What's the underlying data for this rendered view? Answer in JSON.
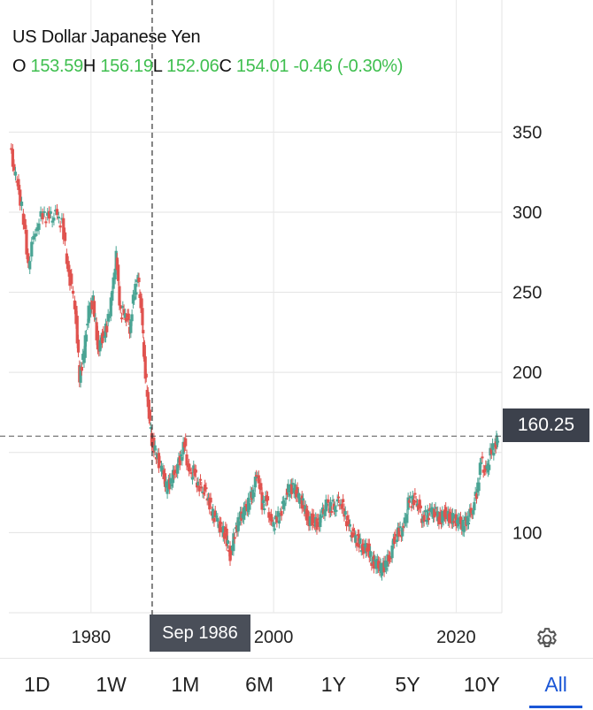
{
  "header": {
    "title": "US Dollar Japanese Yen",
    "ohlc": {
      "o_label": "O",
      "o": "153.59",
      "h_label": "H",
      "h": "156.19",
      "l_label": "L",
      "l": "152.06",
      "c_label": "C",
      "c": "154.01",
      "change": "-0.46",
      "change_pct": "(-0.30%)"
    }
  },
  "last_price_label": "160.25",
  "crosshair_label": "Sep 1986",
  "timeframes": [
    "1D",
    "1W",
    "1M",
    "6M",
    "1Y",
    "5Y",
    "10Y",
    "All"
  ],
  "active_timeframe": "All",
  "colors": {
    "up": "#4aa494",
    "down": "#e0534f",
    "value_text": "#3fbf4f",
    "active_tab": "#1a56d6"
  },
  "chart_data": {
    "type": "candlestick",
    "x_range": [
      1971,
      2025
    ],
    "y_range": [
      50,
      380
    ],
    "y_ticks": [
      100,
      150,
      200,
      250,
      300,
      350
    ],
    "y_tick_labels": [
      "100",
      "",
      "200",
      "250",
      "300",
      "350"
    ],
    "x_ticks": [
      1980,
      2000,
      2020
    ],
    "x_tick_labels": [
      "1980",
      "2000",
      "2020"
    ],
    "last_price": 160.25,
    "crosshair_x": 1986.7,
    "series": [
      [
        1971.2,
        340
      ],
      [
        1971.8,
        322
      ],
      [
        1972.5,
        303
      ],
      [
        1973.2,
        268
      ],
      [
        1974,
        290
      ],
      [
        1974.8,
        299
      ],
      [
        1975.5,
        296
      ],
      [
        1976.2,
        298
      ],
      [
        1976.9,
        293
      ],
      [
        1977.6,
        263
      ],
      [
        1978.3,
        243
      ],
      [
        1978.8,
        197
      ],
      [
        1979.3,
        213
      ],
      [
        1979.8,
        238
      ],
      [
        1980.3,
        245
      ],
      [
        1980.8,
        215
      ],
      [
        1981.3,
        222
      ],
      [
        1981.8,
        228
      ],
      [
        1982.4,
        250
      ],
      [
        1982.8,
        272
      ],
      [
        1983.3,
        237
      ],
      [
        1983.8,
        238
      ],
      [
        1984.3,
        228
      ],
      [
        1984.8,
        250
      ],
      [
        1985.2,
        258
      ],
      [
        1985.6,
        237
      ],
      [
        1985.9,
        206
      ],
      [
        1986.3,
        180
      ],
      [
        1986.7,
        158
      ],
      [
        1987.2,
        148
      ],
      [
        1987.8,
        140
      ],
      [
        1988.3,
        128
      ],
      [
        1988.8,
        132
      ],
      [
        1989.3,
        139
      ],
      [
        1989.8,
        146
      ],
      [
        1990.3,
        155
      ],
      [
        1990.8,
        136
      ],
      [
        1991.3,
        138
      ],
      [
        1991.8,
        130
      ],
      [
        1992.3,
        128
      ],
      [
        1992.8,
        124
      ],
      [
        1993.3,
        112
      ],
      [
        1993.8,
        108
      ],
      [
        1994.3,
        102
      ],
      [
        1994.8,
        99
      ],
      [
        1995.3,
        85
      ],
      [
        1995.8,
        100
      ],
      [
        1996.3,
        108
      ],
      [
        1996.8,
        113
      ],
      [
        1997.3,
        118
      ],
      [
        1997.8,
        126
      ],
      [
        1998.3,
        138
      ],
      [
        1998.8,
        118
      ],
      [
        1999.3,
        120
      ],
      [
        1999.8,
        104
      ],
      [
        2000.3,
        107
      ],
      [
        2000.8,
        112
      ],
      [
        2001.3,
        122
      ],
      [
        2001.8,
        128
      ],
      [
        2002.3,
        128
      ],
      [
        2002.8,
        121
      ],
      [
        2003.3,
        118
      ],
      [
        2003.8,
        108
      ],
      [
        2004.3,
        108
      ],
      [
        2004.8,
        105
      ],
      [
        2005.3,
        110
      ],
      [
        2005.8,
        117
      ],
      [
        2006.3,
        116
      ],
      [
        2006.8,
        117
      ],
      [
        2007.3,
        121
      ],
      [
        2007.8,
        113
      ],
      [
        2008.3,
        103
      ],
      [
        2008.8,
        97
      ],
      [
        2009.3,
        95
      ],
      [
        2009.8,
        90
      ],
      [
        2010.3,
        92
      ],
      [
        2010.8,
        82
      ],
      [
        2011.3,
        81
      ],
      [
        2011.8,
        77
      ],
      [
        2012.3,
        80
      ],
      [
        2012.8,
        85
      ],
      [
        2013.3,
        97
      ],
      [
        2013.8,
        100
      ],
      [
        2014.3,
        102
      ],
      [
        2014.8,
        118
      ],
      [
        2015.3,
        121
      ],
      [
        2015.8,
        120
      ],
      [
        2016.3,
        110
      ],
      [
        2016.8,
        110
      ],
      [
        2017.3,
        113
      ],
      [
        2017.8,
        112
      ],
      [
        2018.3,
        108
      ],
      [
        2018.8,
        112
      ],
      [
        2019.3,
        110
      ],
      [
        2019.8,
        108
      ],
      [
        2020.3,
        107
      ],
      [
        2020.8,
        104
      ],
      [
        2021.3,
        109
      ],
      [
        2021.8,
        114
      ],
      [
        2022.3,
        125
      ],
      [
        2022.8,
        145
      ],
      [
        2023.3,
        136
      ],
      [
        2023.8,
        149
      ],
      [
        2024.3,
        155
      ],
      [
        2024.6,
        160.25
      ]
    ]
  }
}
